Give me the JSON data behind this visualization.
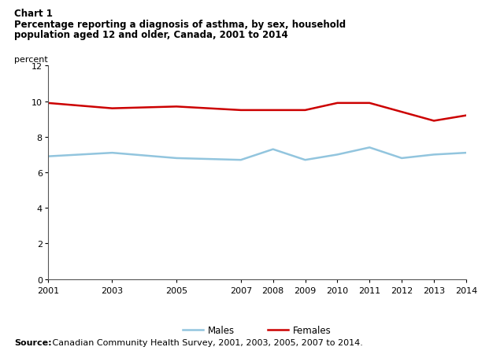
{
  "chart_label": "Chart 1",
  "title_line1": "Percentage reporting a diagnosis of asthma, by sex, household",
  "title_line2": "population aged 12 and older, Canada, 2001 to 2014",
  "ylabel": "percent",
  "source_bold": "Source:",
  "source_rest": " Canadian Community Health Survey, 2001, 2003, 2005, 2007 to 2014.",
  "years": [
    2001,
    2003,
    2005,
    2007,
    2008,
    2009,
    2010,
    2011,
    2012,
    2013,
    2014
  ],
  "males": [
    6.9,
    7.1,
    6.8,
    6.7,
    7.3,
    6.7,
    7.0,
    7.4,
    6.8,
    7.0,
    7.1
  ],
  "females": [
    9.9,
    9.6,
    9.7,
    9.5,
    9.5,
    9.5,
    9.9,
    9.9,
    9.4,
    8.9,
    9.2
  ],
  "male_color": "#92c5de",
  "female_color": "#cc0000",
  "ylim": [
    0,
    12
  ],
  "yticks": [
    0,
    2,
    4,
    6,
    8,
    10,
    12
  ],
  "xticks": [
    2001,
    2003,
    2005,
    2007,
    2008,
    2009,
    2010,
    2011,
    2012,
    2013,
    2014
  ],
  "legend_labels": [
    "Males",
    "Females"
  ],
  "background_color": "#ffffff",
  "line_width": 1.8
}
